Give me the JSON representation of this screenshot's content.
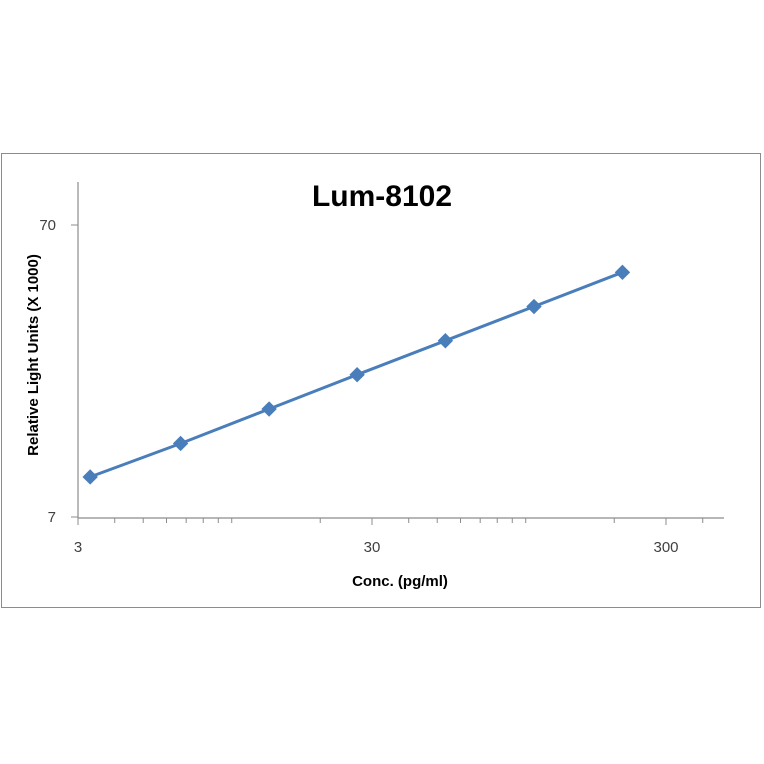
{
  "chart_data": {
    "type": "line",
    "title": "Lum-8102",
    "xlabel": "Conc. (pg/ml)",
    "ylabel": "Relative Light Units (X 1000)",
    "x_scale": "log",
    "y_scale": "log",
    "xlim": [
      3,
      400
    ],
    "ylim": [
      7,
      100
    ],
    "x_ticks": [
      3,
      30,
      300
    ],
    "x_tick_labels": [
      "3",
      "30",
      "300"
    ],
    "y_ticks": [
      7,
      70
    ],
    "y_tick_labels": [
      "7",
      "70"
    ],
    "grid": false,
    "legend": "none",
    "series": [
      {
        "color": "#4a7ebb",
        "marker": "diamond",
        "points": [
          {
            "x": 3.3,
            "y": 9.6
          },
          {
            "x": 6.7,
            "y": 12.5
          },
          {
            "x": 13.4,
            "y": 16.4
          },
          {
            "x": 26.7,
            "y": 21.5
          },
          {
            "x": 53.3,
            "y": 28.1
          },
          {
            "x": 106.7,
            "y": 36.8
          },
          {
            "x": 213.3,
            "y": 48.2
          }
        ]
      }
    ]
  }
}
